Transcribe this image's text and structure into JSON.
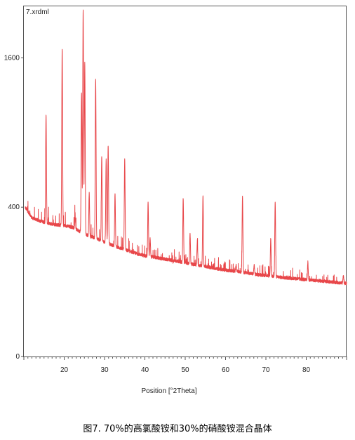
{
  "caption": "图7. 70%的高氯酸铵和30%的硝酸铵混合晶体",
  "chart_data": {
    "type": "line",
    "title": "7.xrdml",
    "xlabel": "Position [°2Theta]",
    "ylabel": "",
    "xlim": [
      10,
      90
    ],
    "ylim": [
      0,
      2200
    ],
    "y_scale": "sqrt",
    "x_ticks": [
      20,
      30,
      40,
      50,
      60,
      70,
      80
    ],
    "y_ticks": [
      0,
      400,
      1600
    ],
    "grid": false,
    "line_color": "#e8474a",
    "frame_color": "#555555",
    "background_fill": "#ffffff",
    "series": [
      {
        "baseline": [
          [
            10,
            410
          ],
          [
            12,
            345
          ],
          [
            14,
            330
          ],
          [
            16,
            318
          ],
          [
            18,
            312
          ],
          [
            20,
            308
          ],
          [
            22,
            300
          ],
          [
            24,
            280
          ],
          [
            26,
            262
          ],
          [
            28,
            250
          ],
          [
            30,
            235
          ],
          [
            32,
            222
          ],
          [
            34,
            210
          ],
          [
            36,
            200
          ],
          [
            38,
            190
          ],
          [
            40,
            182
          ],
          [
            42,
            178
          ],
          [
            44,
            172
          ],
          [
            46,
            168
          ],
          [
            48,
            163
          ],
          [
            50,
            158
          ],
          [
            52,
            152
          ],
          [
            54,
            148
          ],
          [
            56,
            143
          ],
          [
            58,
            138
          ],
          [
            60,
            134
          ],
          [
            62,
            131
          ],
          [
            64,
            128
          ],
          [
            66,
            124
          ],
          [
            68,
            120
          ],
          [
            70,
            118
          ],
          [
            72,
            115
          ],
          [
            74,
            112
          ],
          [
            76,
            110
          ],
          [
            78,
            108
          ],
          [
            80,
            106
          ],
          [
            82,
            104
          ],
          [
            84,
            102
          ],
          [
            86,
            100
          ],
          [
            88,
            98
          ],
          [
            90,
            96
          ]
        ],
        "peaks": [
          [
            15.5,
            1050
          ],
          [
            19.5,
            1700
          ],
          [
            22.7,
            360
          ],
          [
            24.3,
            1250
          ],
          [
            24.7,
            2150
          ],
          [
            25.1,
            1550
          ],
          [
            26.2,
            480
          ],
          [
            27.8,
            1380
          ],
          [
            29.3,
            720
          ],
          [
            30.4,
            700
          ],
          [
            30.9,
            800
          ],
          [
            32.6,
            480
          ],
          [
            35.0,
            700
          ],
          [
            40.8,
            430
          ],
          [
            41.3,
            250
          ],
          [
            47.0,
            160
          ],
          [
            49.5,
            450
          ],
          [
            51.2,
            270
          ],
          [
            53.0,
            240
          ],
          [
            54.4,
            460
          ],
          [
            62.6,
            150
          ],
          [
            64.2,
            460
          ],
          [
            67.1,
            150
          ],
          [
            71.2,
            250
          ],
          [
            72.3,
            430
          ],
          [
            80.4,
            160
          ],
          [
            89.2,
            120
          ]
        ]
      }
    ]
  }
}
